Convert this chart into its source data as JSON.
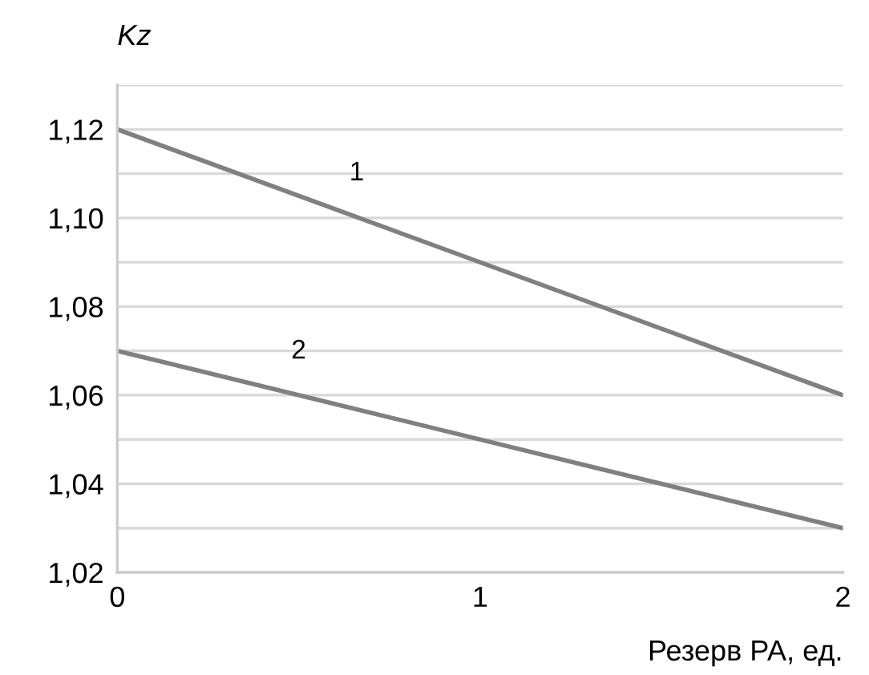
{
  "chart_data": {
    "type": "line",
    "ylabel": "Kz",
    "xlabel": "Резерв РА, ед.",
    "x": [
      0,
      2
    ],
    "series": [
      {
        "name": "1",
        "color": "#808080",
        "values": [
          1.12,
          1.06
        ]
      },
      {
        "name": "2",
        "color": "#808080",
        "values": [
          1.07,
          1.03
        ]
      }
    ],
    "xlim": [
      0,
      2
    ],
    "xticks": [
      0,
      1,
      2
    ],
    "ylim": [
      1.02,
      1.13
    ],
    "yticks": [
      {
        "value": 1.02,
        "label": "1,02"
      },
      {
        "value": 1.03,
        "label": null
      },
      {
        "value": 1.04,
        "label": "1,04"
      },
      {
        "value": 1.05,
        "label": null
      },
      {
        "value": 1.06,
        "label": "1,06"
      },
      {
        "value": 1.07,
        "label": null
      },
      {
        "value": 1.08,
        "label": "1,08"
      },
      {
        "value": 1.09,
        "label": null
      },
      {
        "value": 1.1,
        "label": "1,10"
      },
      {
        "value": 1.11,
        "label": null
      },
      {
        "value": 1.12,
        "label": "1,12"
      },
      {
        "value": 1.13,
        "label": null
      }
    ],
    "grid": "y",
    "legend": false,
    "marker": "none",
    "line_style": "solid"
  }
}
